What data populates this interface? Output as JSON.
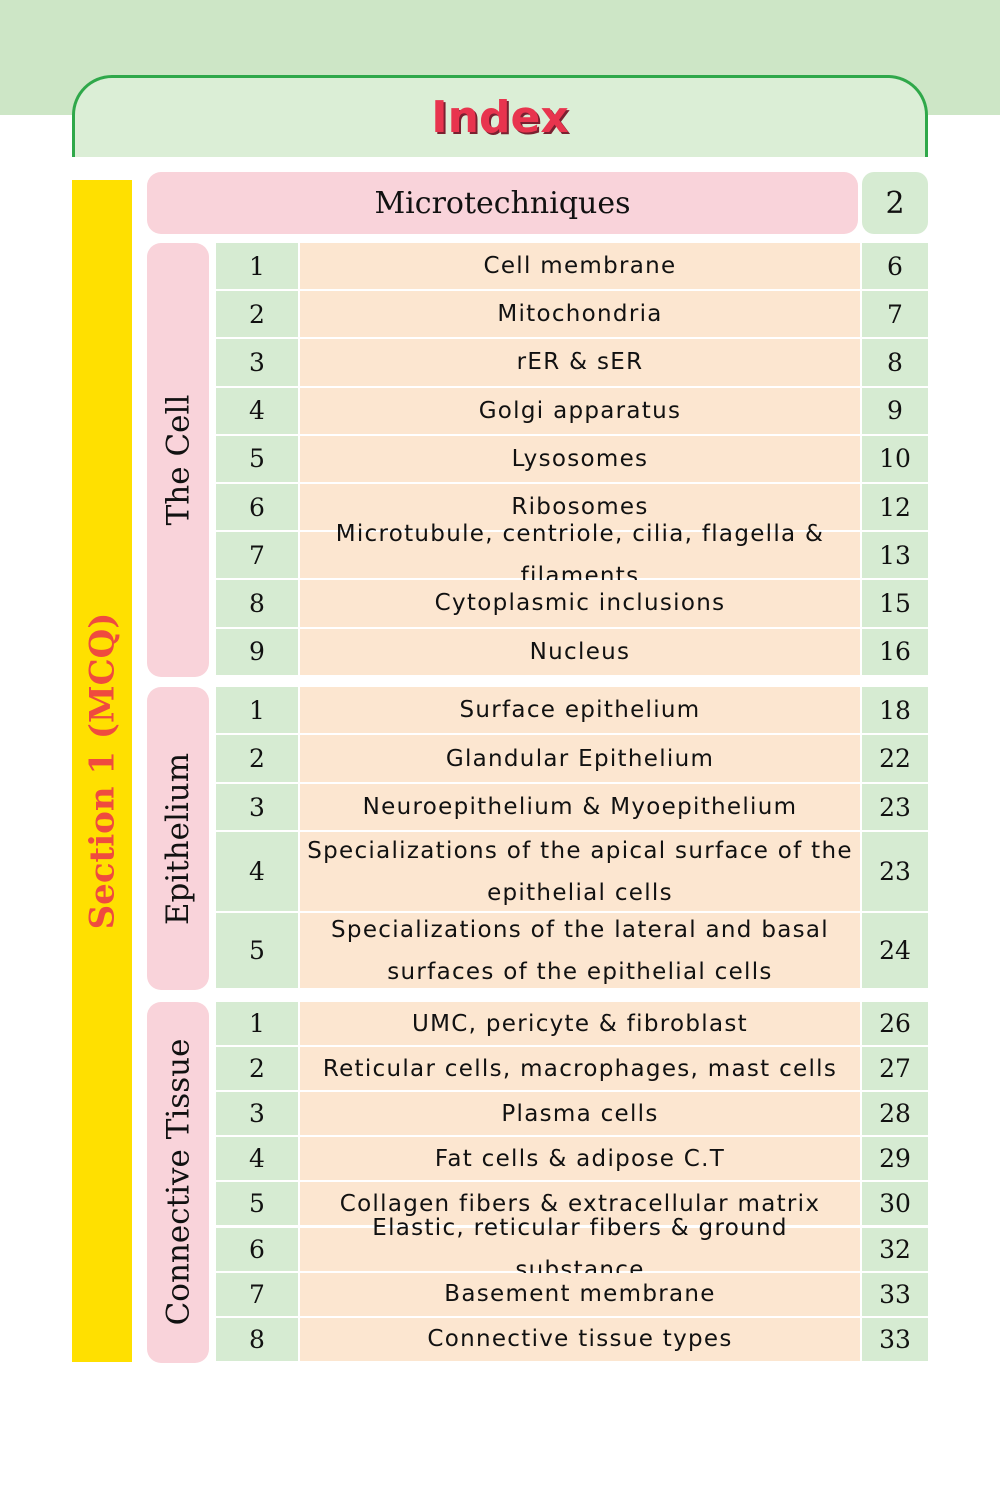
{
  "header": {
    "title": "Index"
  },
  "section": {
    "label": "Section 1 (MCQ)"
  },
  "intro": {
    "title": "Microtechniques",
    "page": 2
  },
  "groups": [
    {
      "label": "The Cell",
      "rows": [
        {
          "number": 1,
          "title": "Cell membrane",
          "page": 6
        },
        {
          "number": 2,
          "title": "Mitochondria",
          "page": 7
        },
        {
          "number": 3,
          "title": "rER & sER",
          "page": 8
        },
        {
          "number": 4,
          "title": "Golgi apparatus",
          "page": 9
        },
        {
          "number": 5,
          "title": "Lysosomes",
          "page": 10
        },
        {
          "number": 6,
          "title": "Ribosomes",
          "page": 12
        },
        {
          "number": 7,
          "title": "Microtubule, centriole, cilia, flagella & filaments",
          "page": 13
        },
        {
          "number": 8,
          "title": "Cytoplasmic inclusions",
          "page": 15
        },
        {
          "number": 9,
          "title": "Nucleus",
          "page": 16
        }
      ]
    },
    {
      "label": "Epithelium",
      "rows": [
        {
          "number": 1,
          "title": "Surface epithelium",
          "page": 18
        },
        {
          "number": 2,
          "title": "Glandular Epithelium",
          "page": 22
        },
        {
          "number": 3,
          "title": "Neuroepithelium & Myoepithelium",
          "page": 23
        },
        {
          "number": 4,
          "title": "Specializations of the apical surface of the epithelial cells",
          "page": 23
        },
        {
          "number": 5,
          "title": "Specializations of the lateral and basal surfaces of the epithelial cells",
          "page": 24
        }
      ]
    },
    {
      "label": "Connective Tissue",
      "rows": [
        {
          "number": 1,
          "title": "UMC, pericyte & fibroblast",
          "page": 26
        },
        {
          "number": 2,
          "title": "Reticular cells, macrophages, mast cells",
          "page": 27
        },
        {
          "number": 3,
          "title": "Plasma cells",
          "page": 28
        },
        {
          "number": 4,
          "title": "Fat cells & adipose C.T",
          "page": 29
        },
        {
          "number": 5,
          "title": "Collagen fibers & extracellular matrix",
          "page": 30
        },
        {
          "number": 6,
          "title": "Elastic, reticular fibers & ground substance",
          "page": 32
        },
        {
          "number": 7,
          "title": "Basement membrane",
          "page": 33
        },
        {
          "number": 8,
          "title": "Connective tissue types",
          "page": 33
        }
      ]
    }
  ]
}
